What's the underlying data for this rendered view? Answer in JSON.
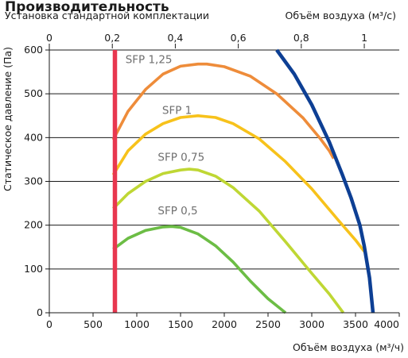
{
  "chart_data": {
    "type": "line",
    "title": "Производительность",
    "subtitle": "Установка стандартной комплектации",
    "top_axis_label": "Объём воздуха (м³/с)",
    "xlabel": "Объём воздуха (м³/ч)",
    "ylabel": "Статическое давление (Па)",
    "xlim": [
      0,
      4000
    ],
    "ylim": [
      0,
      600
    ],
    "top_xlim": [
      0,
      1.111
    ],
    "x_ticks": [
      0,
      500,
      1000,
      1500,
      2000,
      2500,
      3000,
      3500,
      4000
    ],
    "x_tick_labels": [
      "0",
      "500",
      "1000",
      "1500",
      "2000",
      "2500",
      "3000",
      "3500",
      "4000"
    ],
    "y_ticks": [
      0,
      100,
      200,
      300,
      400,
      500,
      600
    ],
    "y_tick_labels": [
      "0",
      "100",
      "200",
      "300",
      "400",
      "500",
      "600"
    ],
    "top_ticks": [
      0,
      0.2,
      0.4,
      0.6,
      0.8,
      1.0
    ],
    "top_tick_labels": [
      "0",
      "0,2",
      "0,4",
      "0,6",
      "0,8",
      "1"
    ],
    "grid": true,
    "series": [
      {
        "name": "SFP 1,25",
        "color": "#ee8c3a",
        "x": [
          730,
          900,
          1100,
          1300,
          1500,
          1700,
          1800,
          2000,
          2300,
          2600,
          2900,
          3100,
          3200,
          3250
        ],
        "y": [
          395,
          460,
          510,
          545,
          563,
          568,
          568,
          562,
          540,
          500,
          445,
          397,
          370,
          352
        ]
      },
      {
        "name": "SFP 1",
        "color": "#f7c21b",
        "x": [
          730,
          900,
          1100,
          1300,
          1500,
          1700,
          1900,
          2100,
          2400,
          2700,
          3000,
          3300,
          3500,
          3600
        ],
        "y": [
          315,
          370,
          408,
          432,
          446,
          450,
          446,
          432,
          397,
          345,
          283,
          212,
          166,
          140
        ]
      },
      {
        "name": "SFP 0,75",
        "color": "#bfd734",
        "x": [
          730,
          900,
          1100,
          1300,
          1500,
          1600,
          1700,
          1900,
          2100,
          2400,
          2700,
          3000,
          3200,
          3360
        ],
        "y": [
          238,
          272,
          300,
          318,
          326,
          328,
          326,
          312,
          286,
          232,
          162,
          90,
          43,
          0
        ]
      },
      {
        "name": "SFP 0,5",
        "color": "#6cbd45",
        "x": [
          730,
          900,
          1100,
          1300,
          1400,
          1500,
          1700,
          1900,
          2100,
          2300,
          2500,
          2700
        ],
        "y": [
          145,
          170,
          188,
          196,
          197,
          195,
          180,
          153,
          116,
          72,
          32,
          0
        ]
      },
      {
        "name": "",
        "color": "#0d3f94",
        "x": [
          2600,
          2800,
          3000,
          3200,
          3350,
          3450,
          3550,
          3600,
          3660,
          3700
        ],
        "y": [
          600,
          545,
          475,
          390,
          315,
          262,
          200,
          152,
          80,
          0
        ]
      },
      {
        "name": "",
        "color": "#e8374f",
        "x": [
          750,
          750
        ],
        "y": [
          0,
          600
        ]
      }
    ],
    "labels": [
      {
        "text": "SFP 1,25",
        "x": 870,
        "y": 570
      },
      {
        "text": "SFP 1",
        "x": 1290,
        "y": 454
      },
      {
        "text": "SFP 0,75",
        "x": 1240,
        "y": 347
      },
      {
        "text": "SFP 0,5",
        "x": 1240,
        "y": 225
      }
    ]
  }
}
